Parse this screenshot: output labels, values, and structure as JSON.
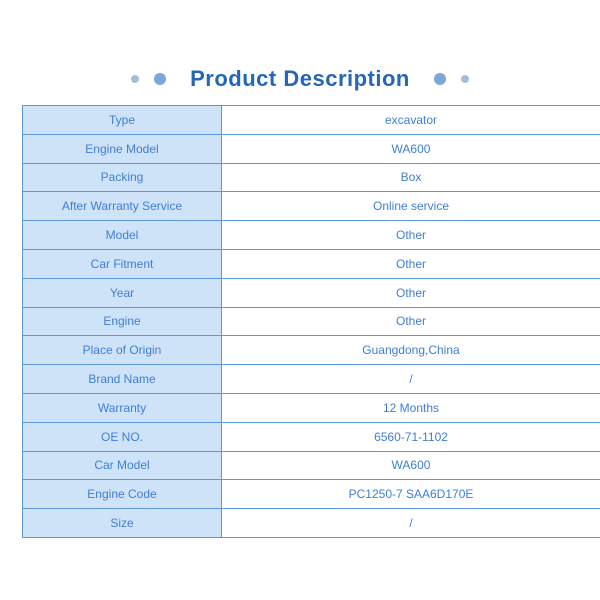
{
  "header": {
    "title": "Product Description"
  },
  "colors": {
    "title_text": "#2566b8",
    "cell_text": "#3f7ed5",
    "label_cell_background": "#cfe3f8",
    "value_cell_background": "#ffffff",
    "table_border": "#5d98d8",
    "table_outer_border": "#3e7cc1",
    "dot_large": "#7da6da",
    "dot_small": "#a3bedd",
    "page_background": "#ffffff"
  },
  "table": {
    "rows": [
      {
        "label": "Type",
        "value": "excavator"
      },
      {
        "label": "Engine Model",
        "value": "WA600"
      },
      {
        "label": "Packing",
        "value": "Box"
      },
      {
        "label": "After Warranty Service",
        "value": "Online service"
      },
      {
        "label": "Model",
        "value": "Other"
      },
      {
        "label": "Car Fitment",
        "value": "Other"
      },
      {
        "label": "Year",
        "value": "Other"
      },
      {
        "label": "Engine",
        "value": "Other"
      },
      {
        "label": "Place of Origin",
        "value": "Guangdong,China"
      },
      {
        "label": "Brand Name",
        "value": "/"
      },
      {
        "label": "Warranty",
        "value": "12 Months"
      },
      {
        "label": "OE NO.",
        "value": "6560-71-1102"
      },
      {
        "label": "Car Model",
        "value": "WA600"
      },
      {
        "label": "Engine Code",
        "value": "PC1250-7 SAA6D170E"
      },
      {
        "label": "Size",
        "value": "/"
      }
    ]
  }
}
